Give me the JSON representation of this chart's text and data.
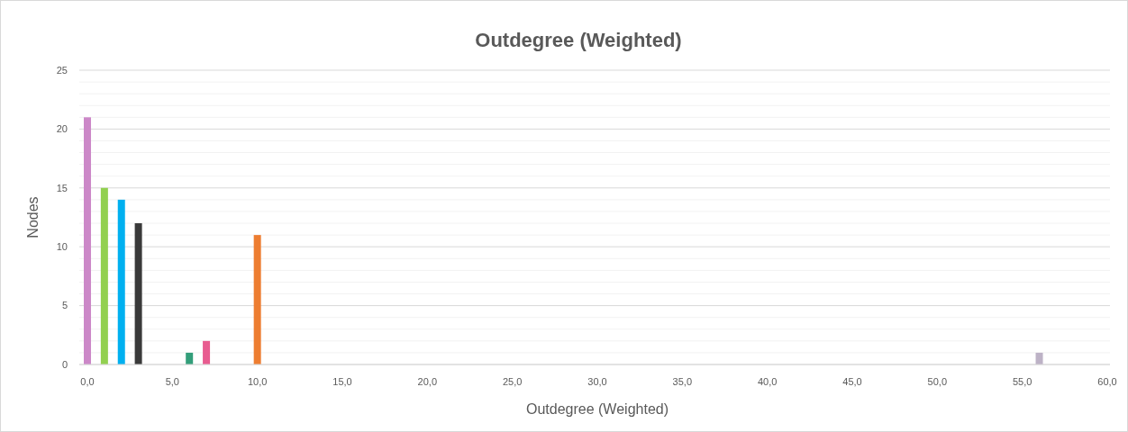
{
  "chart_data": {
    "type": "bar",
    "title": "Outdegree (Weighted)",
    "xlabel": "Outdegree (Weighted)",
    "ylabel": "Nodes",
    "x": [
      0,
      1,
      2,
      3,
      6,
      7,
      10,
      56
    ],
    "values": [
      21,
      15,
      14,
      12,
      1,
      2,
      11,
      1
    ],
    "colors": [
      "#cc88c8",
      "#92d050",
      "#00b0f0",
      "#3a3a3a",
      "#339e7a",
      "#e85c90",
      "#ed7d31",
      "#bdb2c6"
    ],
    "xlim": [
      0,
      60
    ],
    "xticks": [
      {
        "value": 0,
        "label": "0,0"
      },
      {
        "value": 5,
        "label": "5,0"
      },
      {
        "value": 10,
        "label": "10,0"
      },
      {
        "value": 15,
        "label": "15,0"
      },
      {
        "value": 20,
        "label": "20,0"
      },
      {
        "value": 25,
        "label": "25,0"
      },
      {
        "value": 30,
        "label": "30,0"
      },
      {
        "value": 35,
        "label": "35,0"
      },
      {
        "value": 40,
        "label": "40,0"
      },
      {
        "value": 45,
        "label": "45,0"
      },
      {
        "value": 50,
        "label": "50,0"
      },
      {
        "value": 55,
        "label": "55,0"
      },
      {
        "value": 60,
        "label": "60,0"
      }
    ],
    "ylim": [
      0,
      25
    ],
    "yticks": [
      0,
      {
        "value": 1,
        "label": null
      },
      {
        "value": 2,
        "label": null
      },
      {
        "value": 3,
        "label": null
      },
      {
        "value": 4,
        "label": null
      },
      5,
      {
        "value": 6,
        "label": null
      },
      {
        "value": 7,
        "label": null
      },
      {
        "value": 8,
        "label": null
      },
      {
        "value": 9,
        "label": null
      },
      10,
      {
        "value": 11,
        "label": null
      },
      {
        "value": 12,
        "label": null
      },
      {
        "value": 13,
        "label": null
      },
      {
        "value": 14,
        "label": null
      },
      15,
      {
        "value": 16,
        "label": null
      },
      {
        "value": 17,
        "label": null
      },
      {
        "value": 18,
        "label": null
      },
      {
        "value": 19,
        "label": null
      },
      20,
      {
        "value": 21,
        "label": null
      },
      {
        "value": 22,
        "label": null
      },
      {
        "value": 23,
        "label": null
      },
      {
        "value": 24,
        "label": null
      },
      25
    ],
    "grid": "y"
  }
}
